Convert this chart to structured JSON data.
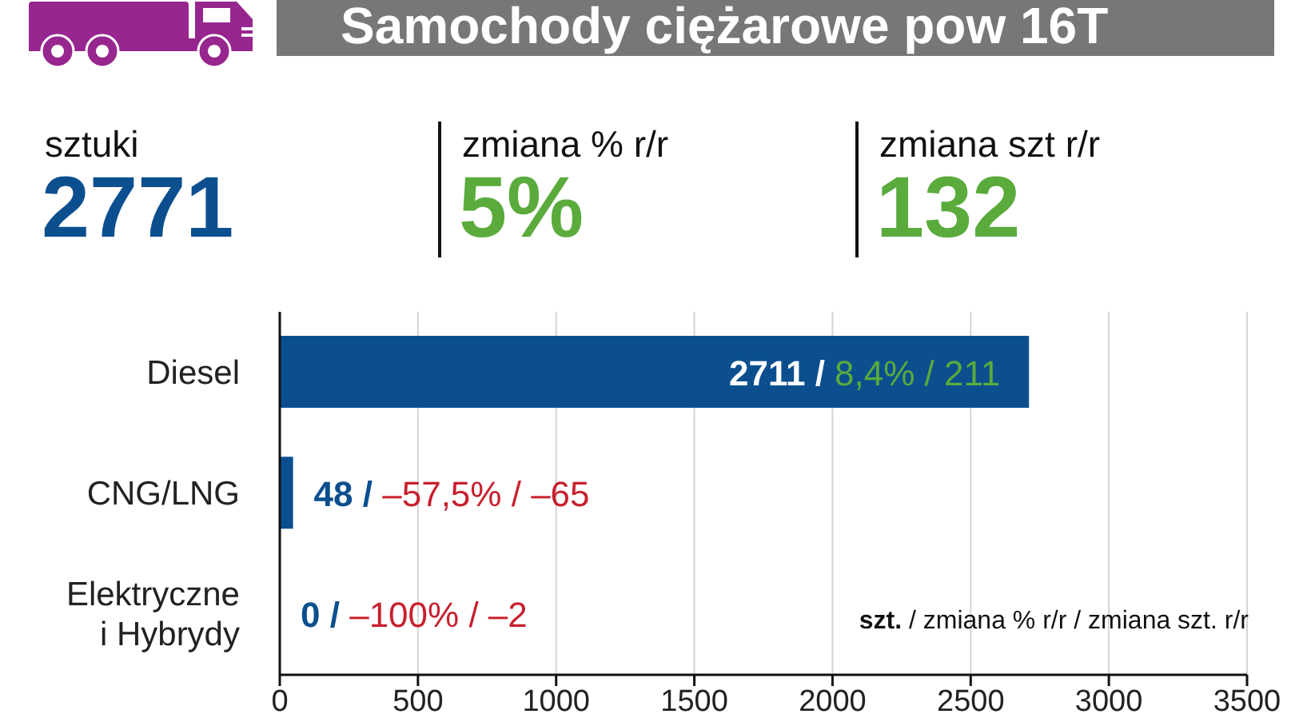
{
  "chart_data": [
    {
      "type": "other",
      "title": "Samochody ciężarowe pow 16T",
      "annotations": [
        "sztuki",
        "2771",
        "zmiana % r/r",
        "5%",
        "zmiana szt r/r",
        "132"
      ]
    },
    {
      "type": "bar",
      "orientation": "horizontal",
      "categories": [
        "Diesel",
        "CNG/LNG",
        "Elektryczne i Hybrydy"
      ],
      "values": [
        2711,
        48,
        0
      ],
      "color": "#0b4f8f",
      "value_labels": [
        "2711 / 8,4% / 211",
        "48 / –57,5% / –65",
        "0 / –100% / –2"
      ],
      "xlim": [
        0,
        3500
      ],
      "xticks": [
        0,
        500,
        1000,
        1500,
        2000,
        2500,
        3000,
        3500
      ],
      "grid": "x",
      "legend": false,
      "annotations": [
        "szt. / zmiana % r/r / zmiana szt. r/r"
      ]
    }
  ]
}
